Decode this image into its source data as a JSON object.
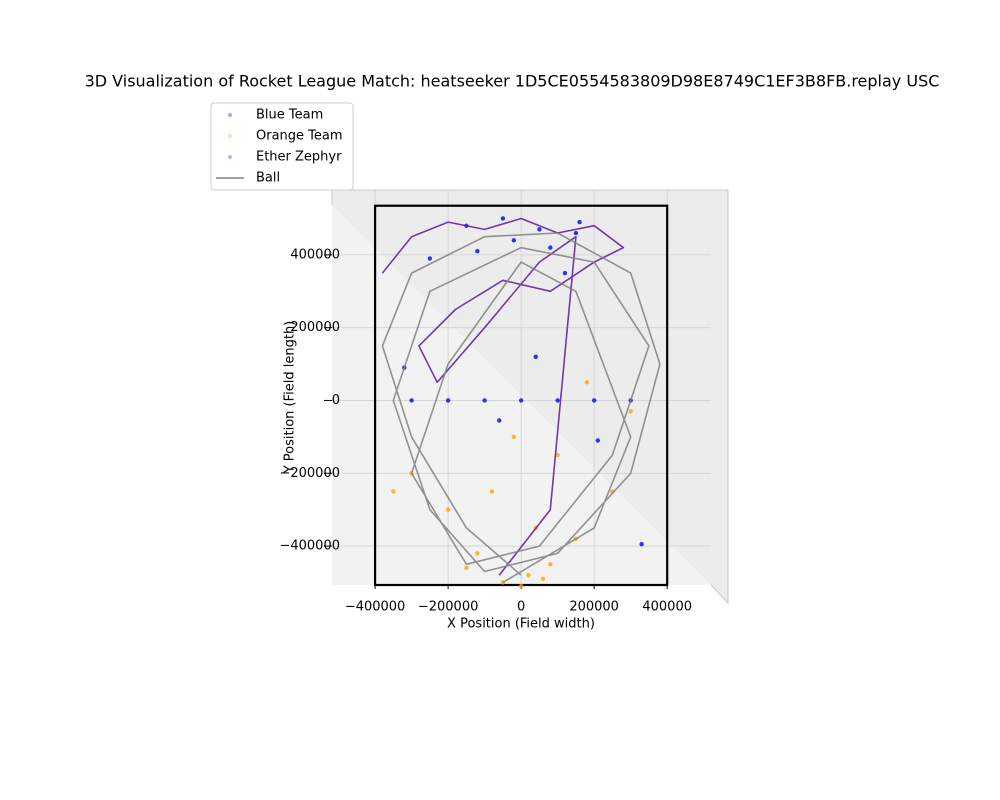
{
  "chart_data": {
    "type": "trajectory3d",
    "title": "3D Visualization of Rocket League Match: heatseeker 1D5CE0554583809D98E8749C1EF3B8FB.replay USC",
    "xlabel": "X Position (Field width)",
    "ylabel": "Y Position (Field length)",
    "xlim": [
      -518000,
      520000
    ],
    "ylim": [
      -507000,
      537000
    ],
    "xticks": [
      {
        "value": -400000,
        "label": "−400000"
      },
      {
        "value": -200000,
        "label": "−200000"
      },
      0,
      200000,
      400000
    ],
    "yticks": [
      {
        "value": -400000,
        "label": "−400000"
      },
      {
        "value": -200000,
        "label": "−200000"
      },
      0,
      200000,
      400000
    ],
    "grid": true,
    "legend": "upper left",
    "field_x": [
      -400000,
      400000
    ],
    "field_y": [
      -507000,
      535000
    ],
    "series": [
      {
        "name": "Blue Team",
        "color": "#0000ff",
        "style": "points",
        "x": [
          -300000,
          -200000,
          -100000,
          0,
          100000,
          200000,
          300000,
          -150000,
          -50000,
          50000,
          150000,
          -250000,
          80000,
          -20000,
          120000,
          -320000,
          330000,
          -60000,
          40000,
          210000,
          -120000,
          160000
        ],
        "y": [
          0,
          0,
          0,
          0,
          0,
          0,
          0,
          480000,
          500000,
          470000,
          460000,
          390000,
          420000,
          440000,
          350000,
          90000,
          -395000,
          -55000,
          120000,
          -110000,
          410000,
          490000
        ]
      },
      {
        "name": "Orange Team",
        "color": "#ffa500",
        "style": "points",
        "x": [
          -50000,
          20000,
          80000,
          -120000,
          150000,
          -200000,
          40000,
          -80000,
          250000,
          -300000,
          100000,
          -20000,
          180000,
          300000,
          -350000,
          60000,
          -150000,
          0
        ],
        "y": [
          -500000,
          -480000,
          -450000,
          -420000,
          -380000,
          -300000,
          -350000,
          -250000,
          -250000,
          -200000,
          -150000,
          -100000,
          50000,
          -30000,
          -250000,
          -490000,
          -460000,
          -510000
        ]
      },
      {
        "name": "Ether Zephyr",
        "color": "#5b1a9c",
        "style": "line",
        "x": [
          -380000,
          -300000,
          -200000,
          -100000,
          0,
          100000,
          200000,
          280000,
          200000,
          80000,
          -50000,
          -180000,
          -280000,
          -230000,
          -100000,
          50000,
          150000,
          80000,
          -60000
        ],
        "y": [
          350000,
          450000,
          490000,
          470000,
          500000,
          460000,
          480000,
          420000,
          380000,
          300000,
          330000,
          250000,
          150000,
          50000,
          200000,
          380000,
          450000,
          -300000,
          -480000
        ]
      },
      {
        "name": "Ball",
        "color": "#808080",
        "style": "line",
        "x": [
          0,
          -150000,
          -300000,
          -380000,
          -300000,
          -100000,
          100000,
          300000,
          380000,
          300000,
          100000,
          -100000,
          -250000,
          -350000,
          -250000,
          0,
          200000,
          350000,
          250000,
          50000,
          -150000,
          -300000,
          -200000,
          0,
          150000,
          300000,
          200000,
          -50000
        ],
        "y": [
          -480000,
          -350000,
          -100000,
          150000,
          350000,
          450000,
          460000,
          350000,
          100000,
          -200000,
          -420000,
          -470000,
          -300000,
          0,
          300000,
          420000,
          380000,
          150000,
          -150000,
          -400000,
          -450000,
          -200000,
          100000,
          380000,
          300000,
          -100000,
          -350000,
          -500000
        ]
      }
    ]
  }
}
